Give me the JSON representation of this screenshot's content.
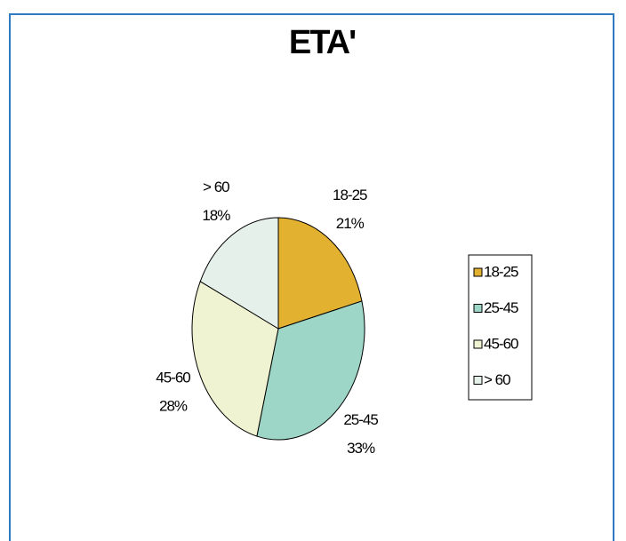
{
  "chart_data": {
    "type": "pie",
    "title": "ETA'",
    "categories": [
      "18-25",
      "25-45",
      "45-60",
      "> 60"
    ],
    "values": [
      21,
      33,
      28,
      18
    ],
    "value_labels": [
      "21%",
      "33%",
      "28%",
      "18%"
    ],
    "colors": [
      "#e3b130",
      "#9dd6c6",
      "#f0f3d2",
      "#e6f0ea"
    ],
    "legend": "right"
  }
}
